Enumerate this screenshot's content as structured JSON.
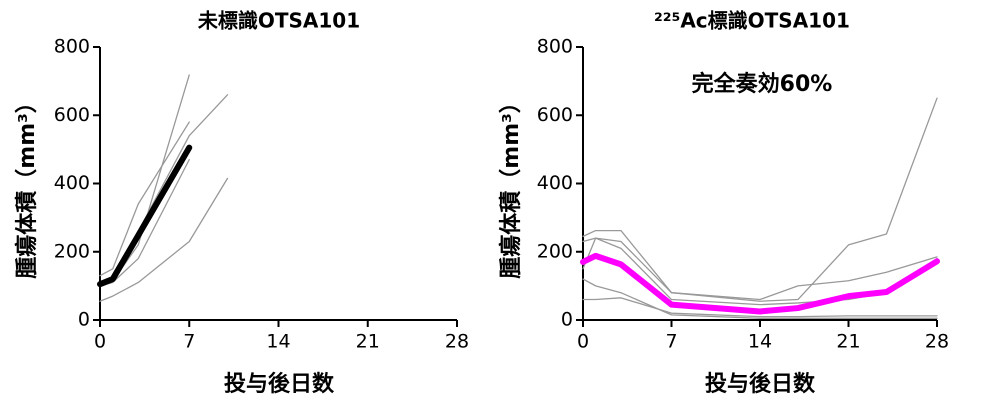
{
  "chart_data": [
    {
      "type": "line",
      "title": "未標識OTSA101",
      "x_label": "投与後日数",
      "y_label": "腫瘍体積（mm³）",
      "x": [
        0,
        1,
        3,
        7,
        10
      ],
      "series": [
        {
          "color": "#999999",
          "values": [
            100,
            115,
            220,
            718,
            null
          ]
        },
        {
          "color": "#999999",
          "values": [
            110,
            125,
            260,
            540,
            660
          ]
        },
        {
          "color": "#999999",
          "values": [
            55,
            70,
            110,
            230,
            415
          ]
        },
        {
          "color": "#999999",
          "values": [
            130,
            150,
            340,
            580,
            null
          ]
        },
        {
          "color": "#999999",
          "values": [
            100,
            110,
            180,
            470,
            null
          ]
        },
        {
          "color": "#000000",
          "values": [
            105,
            120,
            248,
            505,
            null
          ]
        }
      ],
      "xlim": [
        0,
        28
      ],
      "xticks": [
        0,
        7,
        14,
        21,
        28
      ],
      "ylim": [
        0,
        800
      ],
      "yticks": [
        0,
        200,
        400,
        600,
        800
      ],
      "grid": false
    },
    {
      "type": "line",
      "title": "²²⁵Ac標識OTSA101",
      "annotation": "完全奏効60%",
      "x_label": "投与後日数",
      "y_label": "腫瘍体積（mm³）",
      "x": [
        0,
        1,
        3,
        7,
        14,
        17,
        21,
        24,
        28
      ],
      "series": [
        {
          "color": "#999999",
          "values": [
            245,
            262,
            262,
            80,
            55,
            60,
            220,
            252,
            650
          ]
        },
        {
          "color": "#999999",
          "values": [
            230,
            240,
            230,
            80,
            60,
            100,
            115,
            140,
            185
          ]
        },
        {
          "color": "#999999",
          "values": [
            60,
            60,
            65,
            20,
            10,
            10,
            12,
            12,
            12
          ]
        },
        {
          "color": "#999999",
          "values": [
            150,
            240,
            210,
            60,
            45,
            50,
            60,
            80,
            180
          ]
        },
        {
          "color": "#999999",
          "values": [
            120,
            100,
            80,
            15,
            5,
            5,
            5,
            5,
            5
          ]
        },
        {
          "color": "#ff00ff",
          "values": [
            170,
            188,
            163,
            45,
            25,
            35,
            70,
            82,
            172
          ]
        }
      ],
      "xlim": [
        0,
        28
      ],
      "xticks": [
        0,
        7,
        14,
        21,
        28
      ],
      "ylim": [
        0,
        800
      ],
      "yticks": [
        0,
        200,
        400,
        600,
        800
      ],
      "grid": false
    }
  ]
}
